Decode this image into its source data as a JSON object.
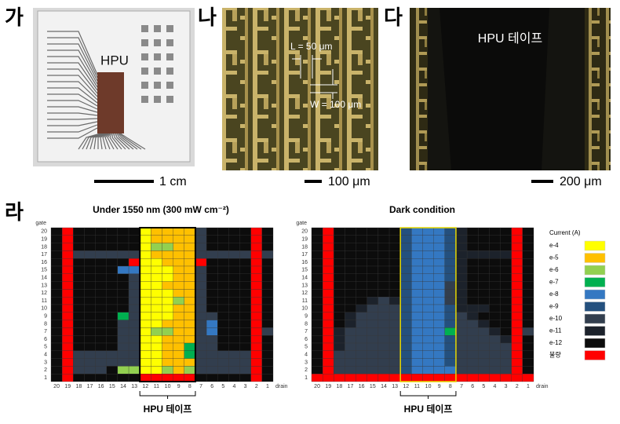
{
  "panel_labels": [
    "가",
    "나",
    "다",
    "라"
  ],
  "photo_a": {
    "label": "HPU",
    "scale": "1 cm"
  },
  "photo_b": {
    "length_label": "L = 50 μm",
    "width_label": "W = 100 μm",
    "scale": "100 μm"
  },
  "photo_c": {
    "label": "HPU 테이프",
    "scale": "200 μm"
  },
  "heatmaps": [
    {
      "title": "Under 1550 nm (300 mW cm⁻²)",
      "row_axis": "gate",
      "col_axis": "drain",
      "rows": [
        20,
        19,
        18,
        17,
        16,
        15,
        14,
        13,
        12,
        11,
        10,
        9,
        8,
        7,
        6,
        5,
        4,
        3,
        2,
        1
      ],
      "columns": [
        20,
        19,
        18,
        17,
        16,
        15,
        14,
        13,
        12,
        11,
        10,
        9,
        8,
        7,
        6,
        5,
        4,
        3,
        2,
        1
      ],
      "bracket_label": "HPU 테이프",
      "cells": [
        [
          -12,
          null,
          -12,
          -12,
          -12,
          -12,
          -12,
          -12,
          -4,
          -5,
          -5,
          -5,
          -5,
          -10,
          -12,
          -12,
          -12,
          -12,
          null,
          -12
        ],
        [
          -12,
          null,
          -12,
          -12,
          -12,
          -12,
          -12,
          -12,
          -4,
          -5,
          -5,
          -5,
          -5,
          -10,
          -12,
          -12,
          -12,
          -12,
          null,
          -12
        ],
        [
          -12,
          null,
          -12,
          -12,
          -12,
          -12,
          -12,
          -12,
          -4,
          -6,
          -6,
          -5,
          -5,
          -10,
          -12,
          -12,
          -12,
          -12,
          null,
          -12
        ],
        [
          -12,
          null,
          -10,
          -10,
          -10,
          -10,
          -10,
          -10,
          -4,
          -5,
          -5,
          -5,
          -5,
          -10,
          -10,
          -10,
          -10,
          -10,
          null,
          -10
        ],
        [
          -12,
          null,
          -12,
          -12,
          -12,
          -12,
          -12,
          null,
          -4,
          -4,
          -5,
          -5,
          -5,
          null,
          -12,
          -12,
          -12,
          -12,
          null,
          -12
        ],
        [
          -12,
          null,
          -12,
          -12,
          -12,
          -12,
          -8,
          -8,
          -4,
          -4,
          -4,
          -5,
          -5,
          -10,
          -12,
          -12,
          -12,
          -12,
          null,
          -12
        ],
        [
          -12,
          null,
          -12,
          -12,
          -12,
          -12,
          -12,
          -10,
          -4,
          -4,
          -4,
          -5,
          -5,
          -10,
          -12,
          -12,
          -12,
          -12,
          null,
          -12
        ],
        [
          -12,
          null,
          -12,
          -12,
          -12,
          -12,
          -12,
          -10,
          -4,
          -4,
          -5,
          -5,
          -5,
          -10,
          -12,
          -12,
          -12,
          -12,
          null,
          -12
        ],
        [
          -12,
          null,
          -12,
          -12,
          -12,
          -12,
          -12,
          -10,
          -4,
          -4,
          -4,
          -5,
          -5,
          -10,
          -12,
          -12,
          -12,
          -12,
          null,
          -12
        ],
        [
          -12,
          null,
          -12,
          -12,
          -12,
          -12,
          -12,
          -10,
          -4,
          -4,
          -4,
          -6,
          -5,
          -10,
          -12,
          -12,
          -12,
          -12,
          null,
          -12
        ],
        [
          -12,
          null,
          -12,
          -12,
          -12,
          -12,
          -12,
          -10,
          -4,
          -4,
          -4,
          -5,
          -5,
          -10,
          -12,
          -12,
          -12,
          -12,
          null,
          -12
        ],
        [
          -12,
          null,
          -12,
          -12,
          -12,
          -12,
          -7,
          -10,
          -4,
          -4,
          -4,
          -5,
          -5,
          -10,
          -10,
          -12,
          -12,
          -12,
          null,
          -12
        ],
        [
          -12,
          null,
          -12,
          -12,
          -12,
          -12,
          -10,
          -10,
          -4,
          -4,
          -5,
          -5,
          -5,
          -10,
          -8,
          -12,
          -12,
          -12,
          null,
          -12
        ],
        [
          -12,
          null,
          -12,
          -12,
          -12,
          -12,
          -10,
          -10,
          -4,
          -6,
          -6,
          -5,
          -5,
          -10,
          -8,
          -12,
          -12,
          -12,
          null,
          -10
        ],
        [
          -12,
          null,
          -12,
          -12,
          -12,
          -12,
          -10,
          -10,
          -4,
          -4,
          -5,
          -5,
          -5,
          -10,
          -10,
          -12,
          -12,
          -12,
          null,
          -12
        ],
        [
          -12,
          null,
          -12,
          -12,
          -12,
          -12,
          -10,
          -10,
          -4,
          -4,
          -5,
          -5,
          -7,
          -10,
          -10,
          -12,
          -12,
          -12,
          null,
          -12
        ],
        [
          -12,
          null,
          -10,
          -10,
          -10,
          -10,
          -10,
          -10,
          -4,
          -4,
          -5,
          -5,
          -7,
          -10,
          -10,
          -10,
          -10,
          -10,
          null,
          -12
        ],
        [
          -12,
          null,
          -10,
          -10,
          -10,
          -10,
          -10,
          -10,
          -4,
          -4,
          -5,
          -5,
          -5,
          -10,
          -10,
          -10,
          -10,
          -10,
          null,
          -12
        ],
        [
          -12,
          null,
          -10,
          -10,
          -10,
          -12,
          -6,
          -6,
          -4,
          -4,
          -6,
          -5,
          -6,
          -10,
          -10,
          -10,
          -10,
          -10,
          null,
          -12
        ],
        [
          -12,
          null,
          -12,
          -12,
          -12,
          -12,
          -12,
          -12,
          null,
          null,
          null,
          null,
          null,
          -12,
          -12,
          -12,
          -12,
          -12,
          null,
          -12
        ]
      ]
    },
    {
      "title": "Dark condition",
      "row_axis": "gate",
      "col_axis": "drain",
      "rows": [
        20,
        19,
        18,
        17,
        16,
        15,
        14,
        13,
        12,
        11,
        10,
        9,
        8,
        7,
        6,
        5,
        4,
        3,
        2,
        1
      ],
      "columns": [
        20,
        19,
        18,
        17,
        16,
        15,
        14,
        13,
        12,
        11,
        10,
        9,
        8,
        7,
        6,
        5,
        4,
        3,
        2,
        1
      ],
      "bracket_label": "HPU 테이프",
      "cells": [
        [
          -12,
          null,
          -12,
          -12,
          -12,
          -12,
          -12,
          -12,
          -9,
          -8,
          -8,
          -8,
          -9,
          -11,
          -12,
          -12,
          -12,
          -12,
          null,
          -12
        ],
        [
          -12,
          null,
          -12,
          -12,
          -12,
          -12,
          -12,
          -12,
          -9,
          -8,
          -8,
          -8,
          -9,
          -11,
          -12,
          -12,
          -12,
          -12,
          null,
          -12
        ],
        [
          -12,
          null,
          -12,
          -12,
          -12,
          -12,
          -12,
          -12,
          -9,
          -8,
          -8,
          -8,
          -9,
          -11,
          -12,
          -12,
          -12,
          -12,
          null,
          -12
        ],
        [
          -12,
          null,
          -12,
          -12,
          -12,
          -12,
          -12,
          -12,
          -9,
          -8,
          -8,
          -8,
          -9,
          -11,
          -11,
          -11,
          -11,
          -11,
          null,
          -12
        ],
        [
          -12,
          null,
          -12,
          -12,
          -12,
          -12,
          -12,
          -12,
          -9,
          -8,
          -8,
          -8,
          -9,
          -11,
          -12,
          -12,
          -12,
          -12,
          null,
          -12
        ],
        [
          -12,
          null,
          -12,
          -12,
          -12,
          -12,
          -12,
          -12,
          -9,
          -8,
          -8,
          -8,
          -9,
          -11,
          -12,
          -12,
          -12,
          -12,
          null,
          -12
        ],
        [
          -12,
          null,
          -12,
          -12,
          -12,
          -12,
          -12,
          -12,
          -9,
          -8,
          -8,
          -8,
          -9,
          -11,
          -12,
          -12,
          -12,
          -12,
          null,
          -12
        ],
        [
          -12,
          null,
          -12,
          -12,
          -12,
          -12,
          -12,
          -12,
          -9,
          -8,
          -8,
          -8,
          -10,
          -11,
          -12,
          -12,
          -12,
          -12,
          null,
          -12
        ],
        [
          -12,
          null,
          -12,
          -12,
          -12,
          -12,
          -12,
          -12,
          -9,
          -8,
          -8,
          -8,
          -10,
          -11,
          -12,
          -12,
          -12,
          -12,
          null,
          -12
        ],
        [
          -12,
          null,
          -12,
          -12,
          -12,
          -11,
          -10,
          -11,
          -9,
          -8,
          -8,
          -8,
          -10,
          -11,
          -12,
          -12,
          -12,
          -12,
          null,
          -12
        ],
        [
          -12,
          null,
          -12,
          -12,
          -11,
          -10,
          -10,
          -10,
          -9,
          -8,
          -8,
          -8,
          -9,
          -11,
          -11,
          -11,
          -12,
          -12,
          null,
          -12
        ],
        [
          -12,
          null,
          -12,
          -11,
          -10,
          -10,
          -10,
          -10,
          -9,
          -8,
          -8,
          -8,
          -9,
          -10,
          -11,
          -12,
          -12,
          -12,
          null,
          -12
        ],
        [
          -12,
          null,
          -12,
          -11,
          -10,
          -10,
          -10,
          -10,
          -9,
          -8,
          -8,
          -8,
          -9,
          -10,
          -10,
          -11,
          -12,
          -12,
          null,
          -12
        ],
        [
          -12,
          null,
          -11,
          -10,
          -10,
          -10,
          -10,
          -10,
          -9,
          -8,
          -8,
          -8,
          -7,
          -10,
          -10,
          -10,
          -11,
          -12,
          null,
          -10
        ],
        [
          -12,
          null,
          -11,
          -10,
          -10,
          -10,
          -10,
          -10,
          -9,
          -8,
          -8,
          -8,
          -9,
          -10,
          -10,
          -10,
          -10,
          -11,
          null,
          -12
        ],
        [
          -12,
          null,
          -11,
          -10,
          -10,
          -10,
          -10,
          -10,
          -9,
          -8,
          -8,
          -8,
          -9,
          -10,
          -10,
          -10,
          -10,
          -10,
          null,
          -12
        ],
        [
          -12,
          null,
          -10,
          -10,
          -10,
          -10,
          -10,
          -10,
          -9,
          -8,
          -8,
          -8,
          -9,
          -10,
          -10,
          -10,
          -10,
          -10,
          null,
          -12
        ],
        [
          -12,
          null,
          -10,
          -10,
          -10,
          -10,
          -10,
          -10,
          -9,
          -8,
          -8,
          -8,
          -9,
          -10,
          -10,
          -10,
          -10,
          -10,
          null,
          -12
        ],
        [
          -12,
          null,
          -10,
          -10,
          -10,
          -10,
          -10,
          -10,
          -9,
          -8,
          -8,
          -8,
          -8,
          -10,
          -10,
          -10,
          -10,
          -10,
          null,
          -12
        ],
        [
          null,
          null,
          null,
          null,
          null,
          null,
          null,
          null,
          null,
          null,
          null,
          null,
          null,
          null,
          null,
          null,
          null,
          null,
          null,
          null
        ]
      ]
    }
  ],
  "legend": {
    "title": "Current (A)",
    "items": [
      {
        "label": "e-4",
        "value": -4,
        "color": "#ffff00"
      },
      {
        "label": "e-5",
        "value": -5,
        "color": "#ffc000"
      },
      {
        "label": "e-6",
        "value": -6,
        "color": "#92d050"
      },
      {
        "label": "e-7",
        "value": -7,
        "color": "#00b050"
      },
      {
        "label": "e-8",
        "value": -8,
        "color": "#3478c2"
      },
      {
        "label": "e-9",
        "value": -9,
        "color": "#24507e"
      },
      {
        "label": "e-10",
        "value": -10,
        "color": "#323e4e"
      },
      {
        "label": "e-11",
        "value": -11,
        "color": "#1c222b"
      },
      {
        "label": "e-12",
        "value": -12,
        "color": "#0c0c0c"
      },
      {
        "label": "불량",
        "color": "#ff0000"
      }
    ]
  }
}
